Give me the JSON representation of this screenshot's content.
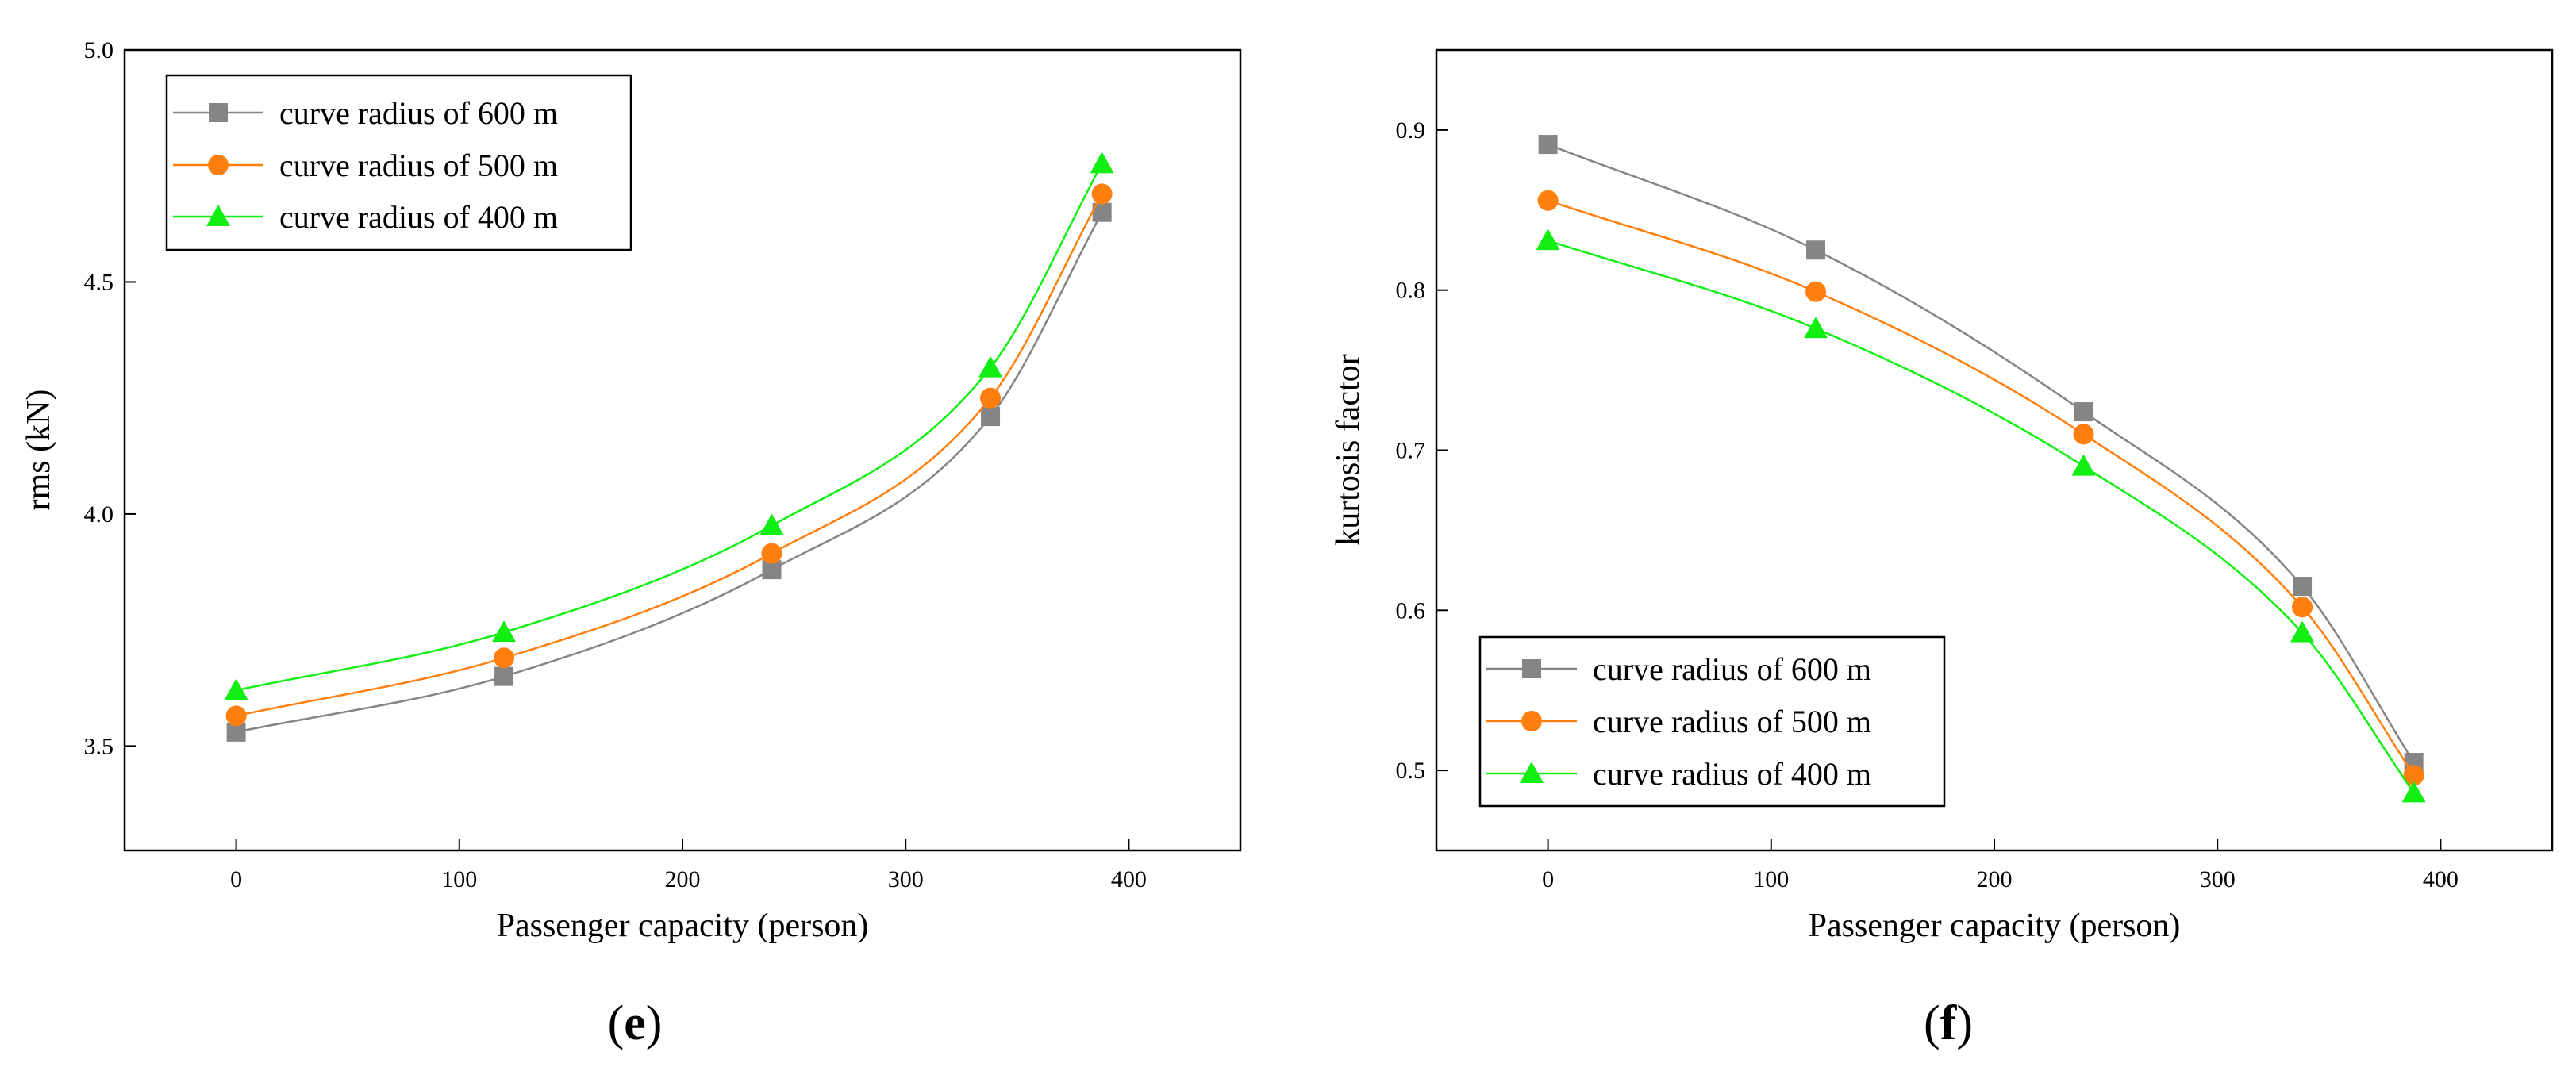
{
  "colors": {
    "curve_radius_600": "#858585",
    "curve_radius_500": "#FF7F0E",
    "curve_radius_400": "#11EE11",
    "axis": "#000000",
    "background": "#ffffff"
  },
  "chart_data": [
    {
      "type": "line",
      "panel_label": {
        "open": "(",
        "letter": "e",
        "close": ")"
      },
      "title": "",
      "xlabel": "Passenger capacity (person)",
      "ylabel": "rms (kN)",
      "xlim": [
        -50,
        450
      ],
      "ylim": [
        3.275,
        5.0
      ],
      "xticks": [
        0,
        100,
        200,
        300,
        400
      ],
      "xtick_labels": [
        "0",
        "100",
        "200",
        "300",
        "400"
      ],
      "yticks": [
        3.5,
        4.0,
        4.5,
        5.0
      ],
      "ytick_labels": [
        "3.5",
        "4.0",
        "4.5",
        "5.0"
      ],
      "grid": false,
      "legend_position": "top-left",
      "x": [
        0,
        120,
        240,
        338,
        388
      ],
      "series": [
        {
          "name": "curve radius of 600 m",
          "marker": "square",
          "color_key": "curve_radius_600",
          "values": [
            3.53,
            3.65,
            3.88,
            4.21,
            4.65
          ]
        },
        {
          "name": "curve radius of 500 m",
          "marker": "circle",
          "color_key": "curve_radius_500",
          "values": [
            3.565,
            3.69,
            3.915,
            4.25,
            4.69
          ]
        },
        {
          "name": "curve radius of 400 m",
          "marker": "triangle",
          "color_key": "curve_radius_400",
          "values": [
            3.62,
            3.745,
            3.975,
            4.315,
            4.755
          ]
        }
      ]
    },
    {
      "type": "line",
      "panel_label": {
        "open": "(",
        "letter": "f",
        "close": ")"
      },
      "title": "",
      "xlabel": "Passenger capacity (person)",
      "ylabel": "kurtosis factor",
      "xlim": [
        -50,
        450
      ],
      "ylim": [
        0.45,
        0.95
      ],
      "xticks": [
        0,
        100,
        200,
        300,
        400
      ],
      "xtick_labels": [
        "0",
        "100",
        "200",
        "300",
        "400"
      ],
      "yticks": [
        0.5,
        0.6,
        0.7,
        0.8,
        0.9
      ],
      "ytick_labels": [
        "0.5",
        "0.6",
        "0.7",
        "0.8",
        "0.9"
      ],
      "grid": false,
      "legend_position": "bottom-left",
      "x": [
        0,
        120,
        240,
        338,
        388
      ],
      "series": [
        {
          "name": "curve radius of 600 m",
          "marker": "square",
          "color_key": "curve_radius_600",
          "values": [
            0.891,
            0.825,
            0.724,
            0.615,
            0.505
          ]
        },
        {
          "name": "curve radius of 500 m",
          "marker": "circle",
          "color_key": "curve_radius_500",
          "values": [
            0.856,
            0.799,
            0.71,
            0.602,
            0.497
          ]
        },
        {
          "name": "curve radius of 400 m",
          "marker": "triangle",
          "color_key": "curve_radius_400",
          "values": [
            0.831,
            0.776,
            0.69,
            0.586,
            0.486
          ]
        }
      ]
    }
  ]
}
